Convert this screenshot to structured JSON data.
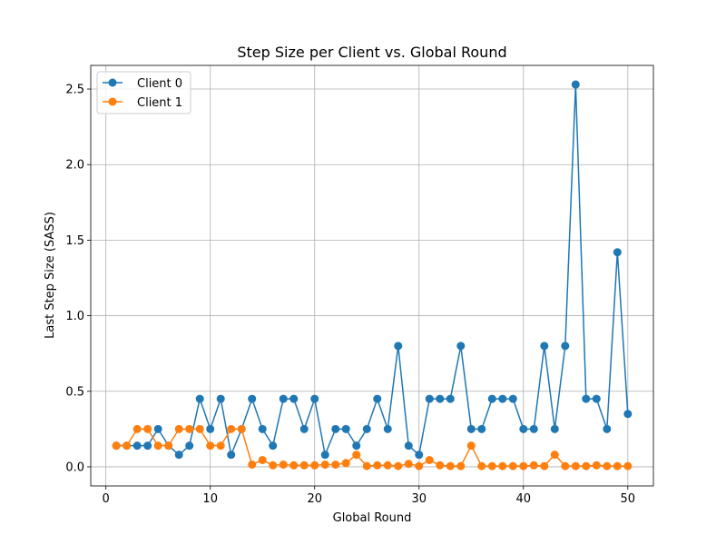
{
  "chart_data": {
    "type": "line",
    "title": "Step Size per Client vs. Global Round",
    "xlabel": "Global Round",
    "ylabel": "Last Step Size (SASS)",
    "xlim": [
      -1.45,
      52.45
    ],
    "ylim": [
      -0.1265,
      2.6565
    ],
    "xticks": [
      0,
      10,
      20,
      30,
      40,
      50
    ],
    "xtick_labels": [
      "0",
      "10",
      "20",
      "30",
      "40",
      "50"
    ],
    "yticks": [
      0.0,
      0.5,
      1.0,
      1.5,
      2.0,
      2.5
    ],
    "ytick_labels": [
      "0.0",
      "0.5",
      "1.0",
      "1.5",
      "2.0",
      "2.5"
    ],
    "grid": true,
    "legend_position": "top-left",
    "x": [
      1,
      2,
      3,
      4,
      5,
      6,
      7,
      8,
      9,
      10,
      11,
      12,
      13,
      14,
      15,
      16,
      17,
      18,
      19,
      20,
      21,
      22,
      23,
      24,
      25,
      26,
      27,
      28,
      29,
      30,
      31,
      32,
      33,
      34,
      35,
      36,
      37,
      38,
      39,
      40,
      41,
      42,
      43,
      44,
      45,
      46,
      47,
      48,
      49,
      50
    ],
    "series": [
      {
        "name": "Client 0",
        "color": "#1f77b4",
        "values": [
          0.14,
          0.14,
          0.14,
          0.14,
          0.25,
          0.14,
          0.08,
          0.14,
          0.45,
          0.25,
          0.45,
          0.08,
          0.25,
          0.45,
          0.25,
          0.14,
          0.45,
          0.45,
          0.25,
          0.45,
          0.08,
          0.25,
          0.25,
          0.14,
          0.25,
          0.45,
          0.25,
          0.8,
          0.14,
          0.08,
          0.45,
          0.45,
          0.45,
          0.8,
          0.25,
          0.25,
          0.45,
          0.45,
          0.45,
          0.25,
          0.25,
          0.8,
          0.25,
          0.8,
          2.53,
          0.45,
          0.45,
          0.25,
          1.42,
          0.35
        ]
      },
      {
        "name": "Client 1",
        "color": "#ff7f0e",
        "values": [
          0.14,
          0.14,
          0.25,
          0.25,
          0.14,
          0.14,
          0.25,
          0.25,
          0.25,
          0.14,
          0.14,
          0.25,
          0.25,
          0.015,
          0.045,
          0.01,
          0.015,
          0.01,
          0.01,
          0.01,
          0.015,
          0.015,
          0.025,
          0.08,
          0.005,
          0.01,
          0.01,
          0.005,
          0.02,
          0.005,
          0.045,
          0.01,
          0.005,
          0.005,
          0.14,
          0.005,
          0.005,
          0.005,
          0.005,
          0.005,
          0.01,
          0.005,
          0.08,
          0.005,
          0.005,
          0.005,
          0.01,
          0.005,
          0.005,
          0.005
        ]
      }
    ]
  }
}
